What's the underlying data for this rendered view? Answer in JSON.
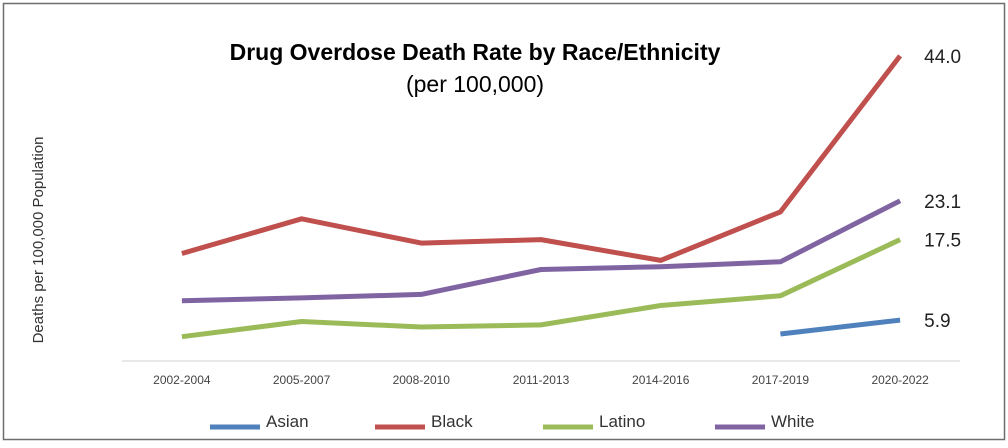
{
  "chart_data": {
    "type": "line",
    "title": "Drug Overdose Death Rate by Race/Ethnicity",
    "subtitle": "(per 100,000)",
    "ylabel": "Deaths per 100,000 Population",
    "xlabel": "",
    "categories": [
      "2002-2004",
      "2005-2007",
      "2008-2010",
      "2011-2013",
      "2014-2016",
      "2017-2019",
      "2020-2022"
    ],
    "ylim": [
      0,
      46
    ],
    "grid": false,
    "legend_position": "bottom",
    "series": [
      {
        "name": "Asian",
        "color": "#4F81BD",
        "values": [
          null,
          null,
          null,
          null,
          null,
          3.9,
          5.9
        ],
        "end_label": "5.9"
      },
      {
        "name": "Black",
        "color": "#C0504D",
        "values": [
          15.5,
          20.5,
          17.0,
          17.5,
          14.5,
          21.5,
          44.0
        ],
        "end_label": "44.0"
      },
      {
        "name": "Latino",
        "color": "#9BBB59",
        "values": [
          3.5,
          5.7,
          4.9,
          5.2,
          8.0,
          9.4,
          17.5
        ],
        "end_label": "17.5"
      },
      {
        "name": "White",
        "color": "#8064A2",
        "values": [
          8.7,
          9.1,
          9.6,
          13.2,
          13.6,
          14.3,
          23.1
        ],
        "end_label": "23.1"
      }
    ]
  }
}
